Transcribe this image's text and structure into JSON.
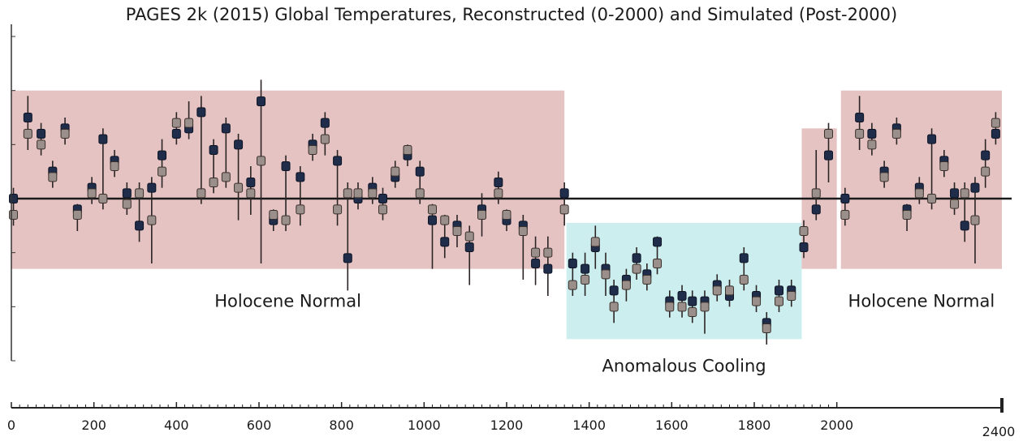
{
  "title": "PAGES 2k (2015) Global Temperatures, Reconstructed (0-2000) and Simulated (Post-2000)",
  "colors": {
    "normal_region": "#e5c3c3",
    "cooling_region": "#cdeeee",
    "candle_fill": "#1f2d4a",
    "candle_alt_fill": "#9a8f8a",
    "whisker": "#2a2424",
    "baseline": "#1a1a1a"
  },
  "chart_data": {
    "type": "candlestick",
    "title": "PAGES 2k (2015) Global Temperatures, Reconstructed (0-2000) and Simulated (Post-2000)",
    "xlabel": "",
    "ylabel": "",
    "xlim": [
      0,
      2400
    ],
    "ylim": [
      -3,
      3
    ],
    "x_ticks": [
      0,
      200,
      400,
      600,
      800,
      1000,
      1200,
      1400,
      1600,
      1800,
      2000,
      2400
    ],
    "baseline_y": 0,
    "grid": false,
    "legend": "none",
    "regions": [
      {
        "label": "Holocene Normal",
        "x_start": 0,
        "x_end": 1340,
        "y_low": -1.3,
        "y_high": 2.0
      },
      {
        "label": "Anomalous Cooling",
        "x_start": 1345,
        "x_end": 1915,
        "y_low": -2.6,
        "y_high": -0.45
      },
      {
        "label": "",
        "x_start": 1915,
        "x_end": 2000,
        "y_low": -1.3,
        "y_high": 1.3
      },
      {
        "label": "Holocene Normal",
        "x_start": 2010,
        "x_end": 2400,
        "y_low": -1.3,
        "y_high": 2.0
      }
    ],
    "candles": [
      {
        "x": 5,
        "open": 0.0,
        "close": -0.3,
        "high": 0.2,
        "low": -0.5
      },
      {
        "x": 40,
        "open": 1.5,
        "close": 1.2,
        "high": 1.9,
        "low": 0.9
      },
      {
        "x": 72,
        "open": 1.2,
        "close": 1.0,
        "high": 1.4,
        "low": 0.8
      },
      {
        "x": 100,
        "open": 0.5,
        "close": 0.4,
        "high": 0.7,
        "low": 0.2
      },
      {
        "x": 130,
        "open": 1.3,
        "close": 1.2,
        "high": 1.5,
        "low": 1.0
      },
      {
        "x": 160,
        "open": -0.2,
        "close": -0.3,
        "high": -0.1,
        "low": -0.6
      },
      {
        "x": 195,
        "open": 0.2,
        "close": 0.1,
        "high": 0.4,
        "low": -0.1
      },
      {
        "x": 222,
        "open": 1.1,
        "close": 0.0,
        "high": 1.3,
        "low": -0.2
      },
      {
        "x": 250,
        "open": 0.7,
        "close": 0.6,
        "high": 0.9,
        "low": 0.4
      },
      {
        "x": 280,
        "open": 0.1,
        "close": -0.1,
        "high": 0.3,
        "low": -0.3
      },
      {
        "x": 310,
        "open": -0.5,
        "close": 0.1,
        "high": 0.3,
        "low": -0.8
      },
      {
        "x": 340,
        "open": 0.2,
        "close": -0.4,
        "high": 0.4,
        "low": -1.2
      },
      {
        "x": 365,
        "open": 0.8,
        "close": 0.5,
        "high": 1.1,
        "low": 0.2
      },
      {
        "x": 400,
        "open": 1.2,
        "close": 1.4,
        "high": 1.6,
        "low": 1.0
      },
      {
        "x": 430,
        "open": 1.3,
        "close": 1.4,
        "high": 1.8,
        "low": 1.1
      },
      {
        "x": 460,
        "open": 1.6,
        "close": 0.1,
        "high": 1.9,
        "low": -0.1
      },
      {
        "x": 490,
        "open": 0.9,
        "close": 0.3,
        "high": 1.1,
        "low": 0.1
      },
      {
        "x": 520,
        "open": 1.3,
        "close": 0.4,
        "high": 1.5,
        "low": 0.2
      },
      {
        "x": 550,
        "open": 1.0,
        "close": 0.2,
        "high": 1.2,
        "low": -0.4
      },
      {
        "x": 580,
        "open": 0.3,
        "close": 0.1,
        "high": 0.6,
        "low": -0.3
      },
      {
        "x": 605,
        "open": 1.8,
        "close": 0.7,
        "high": 2.2,
        "low": -1.2
      },
      {
        "x": 635,
        "open": -0.4,
        "close": -0.3,
        "high": -0.2,
        "low": -0.6
      },
      {
        "x": 665,
        "open": 0.6,
        "close": -0.4,
        "high": 0.8,
        "low": -0.6
      },
      {
        "x": 700,
        "open": 0.4,
        "close": -0.2,
        "high": 0.6,
        "low": -0.5
      },
      {
        "x": 730,
        "open": 1.0,
        "close": 0.9,
        "high": 1.2,
        "low": 0.7
      },
      {
        "x": 760,
        "open": 1.4,
        "close": 1.1,
        "high": 1.6,
        "low": 0.8
      },
      {
        "x": 790,
        "open": 0.7,
        "close": -0.2,
        "high": 0.9,
        "low": -0.5
      },
      {
        "x": 815,
        "open": -1.1,
        "close": 0.1,
        "high": 0.3,
        "low": -1.7
      },
      {
        "x": 840,
        "open": 0.0,
        "close": 0.1,
        "high": 0.3,
        "low": -0.2
      },
      {
        "x": 875,
        "open": 0.2,
        "close": 0.1,
        "high": 0.4,
        "low": -0.1
      },
      {
        "x": 900,
        "open": 0.0,
        "close": -0.2,
        "high": 0.2,
        "low": -0.4
      },
      {
        "x": 930,
        "open": 0.4,
        "close": 0.5,
        "high": 0.7,
        "low": 0.2
      },
      {
        "x": 960,
        "open": 0.8,
        "close": 0.9,
        "high": 1.0,
        "low": 0.6
      },
      {
        "x": 990,
        "open": 0.5,
        "close": 0.1,
        "high": 0.7,
        "low": -0.1
      },
      {
        "x": 1020,
        "open": -0.4,
        "close": -0.2,
        "high": -0.1,
        "low": -1.3
      },
      {
        "x": 1050,
        "open": -0.8,
        "close": -0.4,
        "high": -0.3,
        "low": -1.1
      },
      {
        "x": 1080,
        "open": -0.5,
        "close": -0.6,
        "high": -0.3,
        "low": -0.9
      },
      {
        "x": 1110,
        "open": -0.9,
        "close": -0.7,
        "high": -0.5,
        "low": -1.6
      },
      {
        "x": 1140,
        "open": -0.2,
        "close": -0.3,
        "high": 0.1,
        "low": -0.7
      },
      {
        "x": 1180,
        "open": 0.3,
        "close": 0.1,
        "high": 0.5,
        "low": -0.1
      },
      {
        "x": 1200,
        "open": -0.4,
        "close": -0.3,
        "high": -0.2,
        "low": -0.6
      },
      {
        "x": 1240,
        "open": -0.5,
        "close": -0.6,
        "high": -0.3,
        "low": -1.5
      },
      {
        "x": 1270,
        "open": -1.2,
        "close": -1.0,
        "high": -0.7,
        "low": -1.6
      },
      {
        "x": 1300,
        "open": -1.3,
        "close": -1.0,
        "high": -0.7,
        "low": -1.8
      },
      {
        "x": 1340,
        "open": 0.1,
        "close": -0.2,
        "high": 0.3,
        "low": -0.5
      },
      {
        "x": 1360,
        "open": -1.2,
        "close": -1.6,
        "high": -1.0,
        "low": -1.8
      },
      {
        "x": 1390,
        "open": -1.3,
        "close": -1.5,
        "high": -1.0,
        "low": -1.8
      },
      {
        "x": 1415,
        "open": -0.9,
        "close": -0.8,
        "high": -0.5,
        "low": -1.3
      },
      {
        "x": 1440,
        "open": -1.3,
        "close": -1.4,
        "high": -1.0,
        "low": -1.8
      },
      {
        "x": 1460,
        "open": -1.7,
        "close": -2.0,
        "high": -1.5,
        "low": -2.3
      },
      {
        "x": 1490,
        "open": -1.5,
        "close": -1.6,
        "high": -1.3,
        "low": -1.9
      },
      {
        "x": 1515,
        "open": -1.1,
        "close": -1.3,
        "high": -0.9,
        "low": -1.5
      },
      {
        "x": 1540,
        "open": -1.4,
        "close": -1.5,
        "high": -1.2,
        "low": -1.7
      },
      {
        "x": 1565,
        "open": -0.8,
        "close": -1.2,
        "high": -0.7,
        "low": -1.4
      },
      {
        "x": 1595,
        "open": -1.9,
        "close": -2.0,
        "high": -1.7,
        "low": -2.2
      },
      {
        "x": 1625,
        "open": -1.8,
        "close": -2.0,
        "high": -1.6,
        "low": -2.2
      },
      {
        "x": 1650,
        "open": -1.9,
        "close": -2.1,
        "high": -1.7,
        "low": -2.3
      },
      {
        "x": 1680,
        "open": -1.9,
        "close": -2.0,
        "high": -1.7,
        "low": -2.5
      },
      {
        "x": 1710,
        "open": -1.6,
        "close": -1.7,
        "high": -1.4,
        "low": -1.9
      },
      {
        "x": 1740,
        "open": -1.8,
        "close": -1.7,
        "high": -1.5,
        "low": -2.0
      },
      {
        "x": 1775,
        "open": -1.1,
        "close": -1.5,
        "high": -0.9,
        "low": -1.7
      },
      {
        "x": 1805,
        "open": -1.8,
        "close": -1.9,
        "high": -1.6,
        "low": -2.1
      },
      {
        "x": 1830,
        "open": -2.3,
        "close": -2.4,
        "high": -2.1,
        "low": -2.7
      },
      {
        "x": 1860,
        "open": -1.7,
        "close": -1.9,
        "high": -1.5,
        "low": -2.1
      },
      {
        "x": 1890,
        "open": -1.7,
        "close": -1.8,
        "high": -1.5,
        "low": -2.0
      },
      {
        "x": 1920,
        "open": -0.9,
        "close": -0.6,
        "high": -0.4,
        "low": -1.1
      },
      {
        "x": 1950,
        "open": -0.2,
        "close": 0.1,
        "high": 0.9,
        "low": -0.4
      },
      {
        "x": 1980,
        "open": 0.8,
        "close": 1.2,
        "high": 1.4,
        "low": 0.3
      },
      {
        "x": 2020,
        "open": 0.0,
        "close": -0.3,
        "high": 0.2,
        "low": -0.5
      },
      {
        "x": 2055,
        "open": 1.5,
        "close": 1.2,
        "high": 1.9,
        "low": 0.9
      },
      {
        "x": 2085,
        "open": 1.2,
        "close": 1.0,
        "high": 1.4,
        "low": 0.8
      },
      {
        "x": 2115,
        "open": 0.5,
        "close": 0.4,
        "high": 0.7,
        "low": 0.2
      },
      {
        "x": 2145,
        "open": 1.3,
        "close": 1.2,
        "high": 1.5,
        "low": 1.0
      },
      {
        "x": 2170,
        "open": -0.2,
        "close": -0.3,
        "high": -0.1,
        "low": -0.6
      },
      {
        "x": 2200,
        "open": 0.2,
        "close": 0.1,
        "high": 0.4,
        "low": -0.1
      },
      {
        "x": 2230,
        "open": 1.1,
        "close": 0.0,
        "high": 1.3,
        "low": -0.2
      },
      {
        "x": 2260,
        "open": 0.7,
        "close": 0.6,
        "high": 0.9,
        "low": 0.4
      },
      {
        "x": 2285,
        "open": 0.1,
        "close": -0.1,
        "high": 0.3,
        "low": -0.3
      },
      {
        "x": 2310,
        "open": -0.5,
        "close": 0.1,
        "high": 0.3,
        "low": -0.8
      },
      {
        "x": 2335,
        "open": 0.2,
        "close": -0.4,
        "high": 0.4,
        "low": -1.2
      },
      {
        "x": 2360,
        "open": 0.8,
        "close": 0.5,
        "high": 1.1,
        "low": 0.2
      },
      {
        "x": 2385,
        "open": 1.2,
        "close": 1.4,
        "high": 1.6,
        "low": 1.0
      }
    ]
  }
}
